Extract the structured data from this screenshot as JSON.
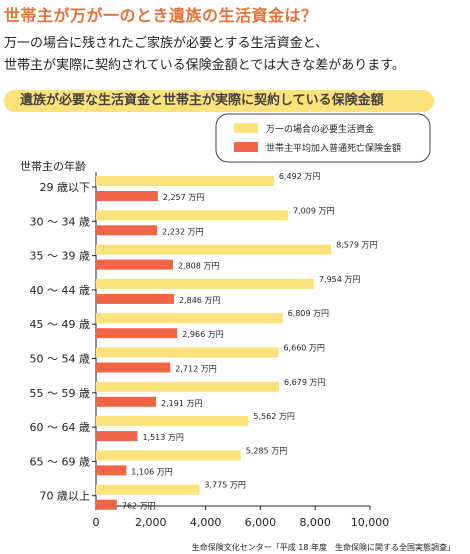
{
  "title": "世帯主が万が一のとき遺族の生活資金は？",
  "intro_lines": [
    "万一の場合に残されたご家族が必要とする生活資金と、",
    "世帯主が実際に契約されている保険金額とでは大きな差があります。"
  ],
  "banner": "遺族が必要な生活資金と世帯主が実際に契約している保険金額",
  "source": "生命保険文化センター「平成 18 年度　生命保険に関する全国実態調査」",
  "colors": {
    "needed": "#fbe27b",
    "insured": "#f06546",
    "title": "#e8713a"
  },
  "chart_data": {
    "type": "bar",
    "orientation": "horizontal",
    "ylabel": "世帯主の年齢",
    "categories": [
      "29 歳以下",
      "30 ～ 34 歳",
      "35 ～ 39 歳",
      "40 ～ 44 歳",
      "45 ～ 49 歳",
      "50 ～ 54 歳",
      "55 ～ 59 歳",
      "60 ～ 64 歳",
      "65 ～ 69 歳",
      "70 歳以上"
    ],
    "series": [
      {
        "name": "万一の場合の必要生活資金",
        "values": [
          6492,
          7009,
          8579,
          7954,
          6809,
          6660,
          6679,
          5562,
          5285,
          3775
        ],
        "labels": [
          "6,492 万円",
          "7,009 万円",
          "8,579 万円",
          "7,954 万円",
          "6,809 万円",
          "6,660 万円",
          "6,679 万円",
          "5,562 万円",
          "5,285 万円",
          "3,775 万円"
        ]
      },
      {
        "name": "世帯主平均加入普通死亡保険金額",
        "values": [
          2257,
          2232,
          2808,
          2846,
          2966,
          2712,
          2191,
          1513,
          1106,
          762
        ],
        "labels": [
          "2,257 万円",
          "2,232 万円",
          "2,808 万円",
          "2,846 万円",
          "2,966 万円",
          "2,712 万円",
          "2,191 万円",
          "1,513 万円",
          "1,106 万円",
          "762 万円"
        ]
      }
    ],
    "xlim": [
      0,
      10000
    ],
    "xticks": [
      0,
      2000,
      4000,
      6000,
      8000,
      10000
    ],
    "xtick_labels": [
      "0",
      "2,000",
      "4,000",
      "6,000",
      "8,000",
      "10,000"
    ],
    "legend_position": "top-right",
    "grid": false
  }
}
